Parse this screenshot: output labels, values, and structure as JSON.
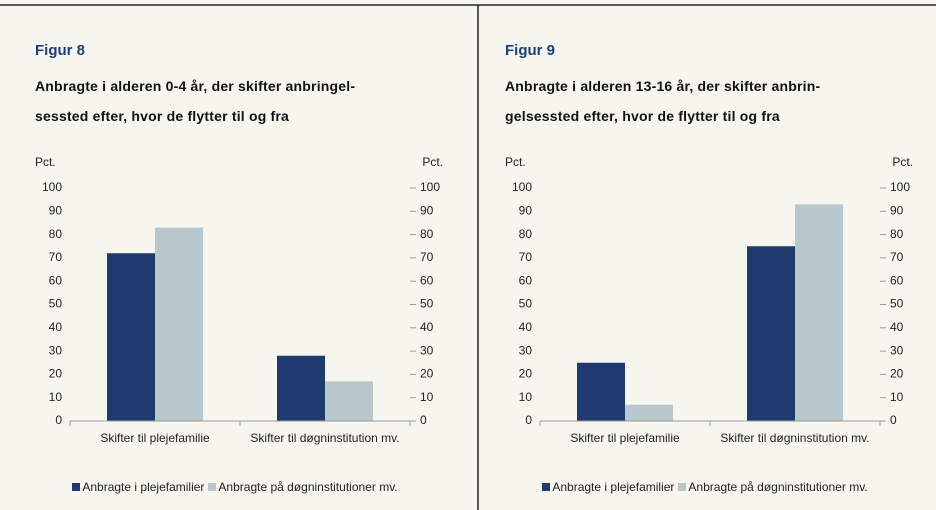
{
  "chart_data": [
    {
      "type": "bar",
      "label": "Figur 8",
      "title": [
        "Anbragte i alderen 0-4 år, der skifter anbringel-",
        "sessted efter, hvor de flytter til og fra"
      ],
      "ylabel": "Pct.",
      "y2label": "Pct.",
      "categories": [
        "Skifter til plejefamilie",
        "Skifter til døgninstitution mv."
      ],
      "series": [
        {
          "name": "Anbragte i plejefamilier",
          "color": "#1f3a6e",
          "values": [
            72,
            28
          ]
        },
        {
          "name": "Anbragte på døgninstitutioner mv.",
          "color": "#b8c8cc",
          "values": [
            83,
            17
          ]
        }
      ],
      "ylim": [
        0,
        100
      ],
      "yticks": [
        0,
        10,
        20,
        30,
        40,
        50,
        60,
        70,
        80,
        90,
        100
      ],
      "y2lim": [
        0,
        100
      ],
      "y2ticks": [
        0,
        10,
        20,
        30,
        40,
        50,
        60,
        70,
        80,
        90,
        100
      ],
      "legend": "bottom"
    },
    {
      "type": "bar",
      "label": "Figur 9",
      "title": [
        "Anbragte i alderen 13-16 år, der skifter anbrin-",
        "gelsessted efter, hvor de flytter til og fra"
      ],
      "ylabel": "Pct.",
      "y2label": "Pct.",
      "categories": [
        "Skifter til plejefamilie",
        "Skifter til døgninstitution mv."
      ],
      "series": [
        {
          "name": "Anbragte i plejefamilier",
          "color": "#1f3a6e",
          "values": [
            25,
            75
          ]
        },
        {
          "name": "Anbragte på døgninstitutioner mv.",
          "color": "#b8c8cc",
          "values": [
            7,
            93
          ]
        }
      ],
      "ylim": [
        0,
        100
      ],
      "yticks": [
        0,
        10,
        20,
        30,
        40,
        50,
        60,
        70,
        80,
        90,
        100
      ],
      "y2lim": [
        0,
        100
      ],
      "y2ticks": [
        0,
        10,
        20,
        30,
        40,
        50,
        60,
        70,
        80,
        90,
        100
      ],
      "legend": "bottom"
    }
  ]
}
